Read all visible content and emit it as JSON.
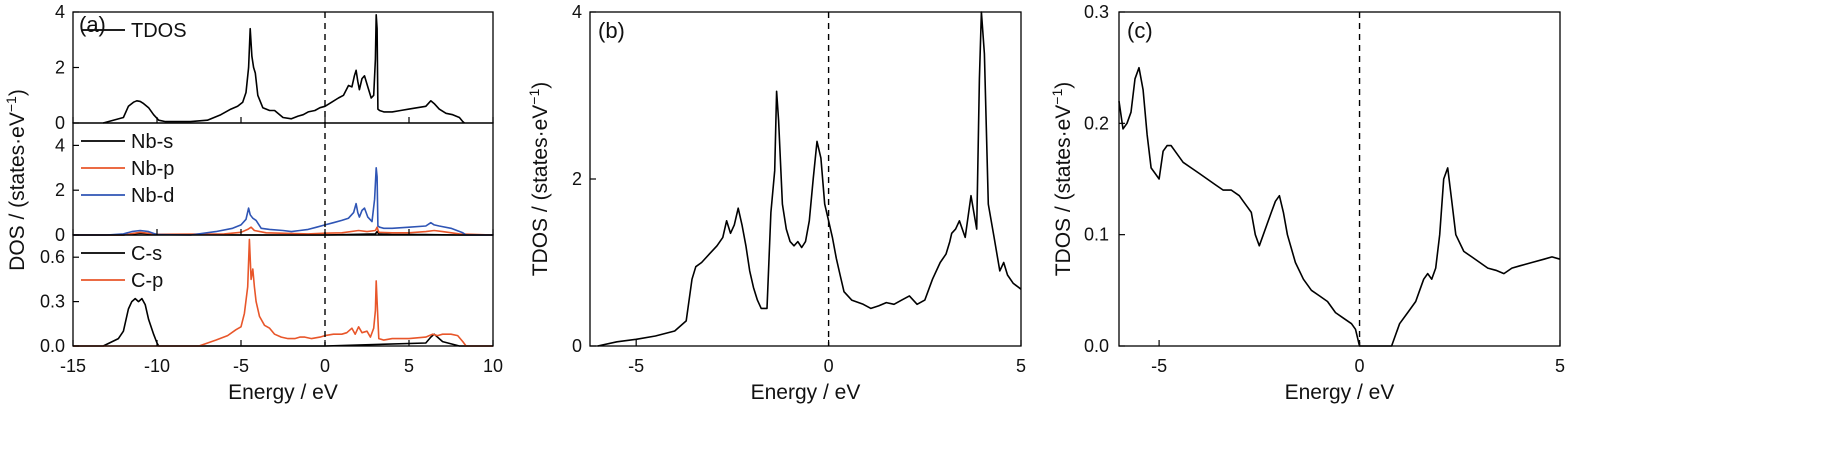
{
  "colors": {
    "black": "#000000",
    "orange": "#e8562a",
    "blue": "#2f55b5"
  },
  "chart_data": [
    {
      "type": "line",
      "panel_label": "(a)",
      "xlabel": "Energy / eV",
      "ylabel_parts": [
        "DOS / (states·eV",
        "−1",
        ")"
      ],
      "xlim": [
        -15,
        10
      ],
      "xticks": [
        -15,
        -10,
        -5,
        0,
        5,
        10
      ],
      "xtick_labels": [
        "-15",
        "-10",
        "-5",
        "0",
        "5",
        "10"
      ],
      "vertical_dashed_line_x": 0,
      "subplots": [
        {
          "ylim": [
            0,
            4
          ],
          "yticks": [
            0,
            2,
            4
          ],
          "ytick_labels": [
            "0",
            "2",
            "4"
          ],
          "legend": "top-left",
          "series": [
            {
              "name": "TDOS",
              "color": "#000000",
              "x": [
                -13.2,
                -12,
                -11.7,
                -11.4,
                -11.2,
                -11.0,
                -10.8,
                -10.5,
                -10.2,
                -9.9,
                -9.5,
                -8,
                -7,
                -6.2,
                -5.6,
                -5.2,
                -4.9,
                -4.7,
                -4.55,
                -4.45,
                -4.35,
                -4.25,
                -4.15,
                -4.0,
                -3.7,
                -3.3,
                -3,
                -2.5,
                -2,
                -1.6,
                -1.3,
                -1,
                -0.6,
                -0.3,
                0,
                0.4,
                0.8,
                1.1,
                1.4,
                1.6,
                1.75,
                1.85,
                1.95,
                2.05,
                2.2,
                2.35,
                2.55,
                2.75,
                2.9,
                3.0,
                3.05,
                3.1,
                3.15,
                3.25,
                3.5,
                4,
                4.5,
                5,
                5.5,
                6,
                6.3,
                6.5,
                6.8,
                7.2,
                7.6,
                8,
                8.2,
                8.3
              ],
              "y": [
                0,
                0.2,
                0.6,
                0.75,
                0.8,
                0.78,
                0.7,
                0.55,
                0.3,
                0.1,
                0.05,
                0.05,
                0.1,
                0.3,
                0.5,
                0.6,
                0.75,
                1.1,
                2.0,
                3.4,
                2.4,
                2.0,
                1.8,
                1.0,
                0.55,
                0.45,
                0.45,
                0.2,
                0.15,
                0.25,
                0.3,
                0.4,
                0.45,
                0.55,
                0.6,
                0.75,
                0.9,
                1.0,
                1.35,
                1.3,
                1.7,
                1.9,
                1.5,
                1.2,
                1.6,
                1.7,
                1.3,
                0.9,
                1.0,
                2.3,
                3.9,
                3.4,
                0.5,
                0.45,
                0.4,
                0.4,
                0.45,
                0.5,
                0.55,
                0.6,
                0.8,
                0.7,
                0.5,
                0.35,
                0.3,
                0.2,
                0.05,
                0
              ]
            }
          ]
        },
        {
          "ylim": [
            0,
            5
          ],
          "yticks": [
            0,
            2,
            4
          ],
          "ytick_labels": [
            "0",
            "2",
            "4"
          ],
          "legend": "top-left",
          "series": [
            {
              "name": "Nb-s",
              "color": "#000000",
              "x": [
                -15,
                -12,
                -11,
                -10,
                -5,
                0,
                2,
                3,
                3.1,
                3.2,
                4,
                6,
                8,
                10
              ],
              "y": [
                0,
                0,
                0.08,
                0.03,
                0,
                0,
                0.03,
                0.05,
                0.15,
                0.05,
                0.02,
                0.02,
                0,
                0
              ]
            },
            {
              "name": "Nb-p",
              "color": "#e8562a",
              "x": [
                -15,
                -12,
                -11,
                -10,
                -6,
                -5,
                -4.6,
                -4.4,
                -4.2,
                -3.5,
                -1,
                0,
                1,
                2,
                2.5,
                3,
                3.1,
                3.2,
                4,
                5,
                6,
                6.5,
                7,
                8,
                10
              ],
              "y": [
                0,
                0,
                0.12,
                0.03,
                0.05,
                0.12,
                0.25,
                0.35,
                0.2,
                0.1,
                0.05,
                0.08,
                0.1,
                0.2,
                0.15,
                0.2,
                0.35,
                0.12,
                0.1,
                0.1,
                0.15,
                0.2,
                0.15,
                0.05,
                0
              ]
            },
            {
              "name": "Nb-d",
              "color": "#2f55b5",
              "x": [
                -15,
                -13,
                -12,
                -11.5,
                -11,
                -10.5,
                -10,
                -8,
                -6.5,
                -5.5,
                -5,
                -4.7,
                -4.55,
                -4.45,
                -4.3,
                -4.1,
                -3.8,
                -3.3,
                -2.5,
                -2,
                -1.5,
                -1,
                -0.5,
                0,
                0.5,
                1,
                1.4,
                1.7,
                1.85,
                1.95,
                2.05,
                2.2,
                2.35,
                2.55,
                2.8,
                2.95,
                3.05,
                3.1,
                3.15,
                3.25,
                3.5,
                4,
                5,
                6,
                6.3,
                6.5,
                6.8,
                7.5,
                8.2,
                8.4,
                10
              ],
              "y": [
                0,
                0,
                0.05,
                0.15,
                0.2,
                0.15,
                0.02,
                0,
                0.15,
                0.3,
                0.45,
                0.7,
                1.2,
                0.9,
                0.75,
                0.65,
                0.3,
                0.25,
                0.2,
                0.15,
                0.2,
                0.25,
                0.35,
                0.45,
                0.55,
                0.65,
                0.75,
                1.0,
                1.4,
                1.0,
                0.8,
                1.1,
                1.2,
                0.8,
                0.6,
                1.6,
                3.0,
                2.6,
                0.4,
                0.35,
                0.3,
                0.3,
                0.35,
                0.4,
                0.55,
                0.45,
                0.4,
                0.3,
                0.1,
                0,
                0
              ]
            }
          ]
        },
        {
          "ylim": [
            0,
            0.75
          ],
          "yticks": [
            0.0,
            0.3,
            0.6
          ],
          "ytick_labels": [
            "0.0",
            "0.3",
            "0.6"
          ],
          "legend": "top-left",
          "series": [
            {
              "name": "C-s",
              "color": "#000000",
              "x": [
                -15,
                -13.2,
                -12.3,
                -12.0,
                -11.7,
                -11.5,
                -11.3,
                -11.1,
                -10.9,
                -10.7,
                -10.5,
                -10.2,
                -10.0,
                -9.9,
                0,
                6,
                6.3,
                6.5,
                7,
                8,
                10
              ],
              "y": [
                0,
                0,
                0.05,
                0.1,
                0.25,
                0.3,
                0.32,
                0.3,
                0.32,
                0.28,
                0.18,
                0.08,
                0.02,
                0,
                0,
                0.02,
                0.06,
                0.08,
                0.03,
                0,
                0
              ]
            },
            {
              "name": "C-p",
              "color": "#e8562a",
              "x": [
                -15,
                -7.5,
                -6.5,
                -5.8,
                -5.3,
                -5.0,
                -4.8,
                -4.6,
                -4.5,
                -4.4,
                -4.3,
                -4.2,
                -4.1,
                -3.9,
                -3.6,
                -3.3,
                -3.0,
                -2.6,
                -2.2,
                -1.8,
                -1.5,
                -1.2,
                -0.8,
                -0.3,
                0,
                0.5,
                1,
                1.3,
                1.6,
                1.8,
                2.0,
                2.2,
                2.5,
                2.7,
                2.9,
                3.0,
                3.05,
                3.1,
                3.2,
                3.5,
                4,
                5,
                6,
                6.4,
                6.7,
                7,
                7.5,
                7.9,
                8.2,
                8.4,
                10
              ],
              "y": [
                0,
                0,
                0.04,
                0.07,
                0.11,
                0.13,
                0.22,
                0.4,
                0.72,
                0.45,
                0.52,
                0.4,
                0.3,
                0.2,
                0.14,
                0.12,
                0.08,
                0.06,
                0.05,
                0.05,
                0.06,
                0.06,
                0.05,
                0.06,
                0.07,
                0.08,
                0.08,
                0.09,
                0.12,
                0.08,
                0.13,
                0.09,
                0.1,
                0.06,
                0.12,
                0.24,
                0.44,
                0.3,
                0.05,
                0.04,
                0.05,
                0.05,
                0.06,
                0.08,
                0.07,
                0.08,
                0.08,
                0.07,
                0.03,
                0,
                0
              ]
            }
          ]
        }
      ]
    },
    {
      "type": "line",
      "panel_label": "(b)",
      "xlabel": "Energy / eV",
      "ylabel_parts": [
        "TDOS / (states·eV",
        "−1",
        ")"
      ],
      "xlim": [
        -6.2,
        5
      ],
      "ylim": [
        0,
        4
      ],
      "xticks": [
        -5,
        0,
        5
      ],
      "xtick_labels": [
        "-5",
        "0",
        "5"
      ],
      "yticks": [
        0,
        2,
        4
      ],
      "ytick_labels": [
        "0",
        "2",
        "4"
      ],
      "vertical_dashed_line_x": 0,
      "series": [
        {
          "name": "",
          "color": "#000000",
          "x": [
            -6.0,
            -5.5,
            -5.0,
            -4.5,
            -4.0,
            -3.7,
            -3.55,
            -3.45,
            -3.3,
            -3.1,
            -2.9,
            -2.75,
            -2.65,
            -2.55,
            -2.45,
            -2.35,
            -2.25,
            -2.15,
            -2.05,
            -1.95,
            -1.85,
            -1.75,
            -1.6,
            -1.5,
            -1.4,
            -1.35,
            -1.3,
            -1.2,
            -1.1,
            -1.0,
            -0.9,
            -0.8,
            -0.7,
            -0.6,
            -0.5,
            -0.4,
            -0.3,
            -0.2,
            -0.1,
            0.0,
            0.1,
            0.2,
            0.3,
            0.4,
            0.6,
            0.9,
            1.1,
            1.3,
            1.5,
            1.7,
            1.9,
            2.1,
            2.3,
            2.5,
            2.7,
            2.9,
            3.05,
            3.15,
            3.2,
            3.3,
            3.4,
            3.55,
            3.7,
            3.85,
            3.92,
            3.97,
            4.05,
            4.15,
            4.3,
            4.45,
            4.55,
            4.65,
            4.8,
            5.0
          ],
          "y": [
            0,
            0.05,
            0.08,
            0.12,
            0.18,
            0.3,
            0.8,
            0.95,
            1.0,
            1.1,
            1.2,
            1.3,
            1.5,
            1.35,
            1.45,
            1.65,
            1.45,
            1.2,
            0.9,
            0.7,
            0.55,
            0.45,
            0.45,
            1.6,
            2.1,
            3.05,
            2.7,
            1.7,
            1.4,
            1.25,
            1.2,
            1.25,
            1.18,
            1.25,
            1.5,
            2.0,
            2.45,
            2.25,
            1.7,
            1.5,
            1.3,
            1.05,
            0.85,
            0.65,
            0.55,
            0.5,
            0.45,
            0.48,
            0.52,
            0.5,
            0.55,
            0.6,
            0.5,
            0.55,
            0.8,
            1.0,
            1.1,
            1.25,
            1.35,
            1.4,
            1.5,
            1.3,
            1.8,
            1.4,
            3.2,
            4.0,
            3.5,
            1.7,
            1.3,
            0.9,
            1.0,
            0.85,
            0.75,
            0.68
          ]
        }
      ]
    },
    {
      "type": "line",
      "panel_label": "(c)",
      "xlabel": "Energy / eV",
      "ylabel_parts": [
        "TDOS / (states·eV",
        "−1",
        ")"
      ],
      "xlim": [
        -6,
        5
      ],
      "ylim": [
        0,
        0.3
      ],
      "xticks": [
        -5,
        0,
        5
      ],
      "xtick_labels": [
        "-5",
        "0",
        "5"
      ],
      "yticks": [
        0.0,
        0.1,
        0.2,
        0.3
      ],
      "ytick_labels": [
        "0.0",
        "0.1",
        "0.2",
        "0.3"
      ],
      "vertical_dashed_line_x": 0,
      "series": [
        {
          "name": "",
          "color": "#000000",
          "x": [
            -6.0,
            -5.9,
            -5.8,
            -5.7,
            -5.6,
            -5.5,
            -5.4,
            -5.3,
            -5.2,
            -5.1,
            -5.0,
            -4.9,
            -4.8,
            -4.7,
            -4.6,
            -4.4,
            -4.2,
            -4.0,
            -3.8,
            -3.6,
            -3.4,
            -3.2,
            -3.0,
            -2.9,
            -2.8,
            -2.7,
            -2.6,
            -2.5,
            -2.4,
            -2.3,
            -2.2,
            -2.1,
            -2.0,
            -1.9,
            -1.8,
            -1.6,
            -1.4,
            -1.2,
            -1.0,
            -0.8,
            -0.6,
            -0.4,
            -0.2,
            -0.1,
            0.0,
            0.1,
            0.5,
            0.8,
            1.0,
            1.2,
            1.4,
            1.5,
            1.6,
            1.7,
            1.8,
            1.9,
            2.0,
            2.1,
            2.2,
            2.3,
            2.4,
            2.6,
            2.8,
            3.0,
            3.2,
            3.4,
            3.6,
            3.8,
            4.0,
            4.3,
            4.6,
            4.8,
            5.0
          ],
          "y": [
            0.22,
            0.195,
            0.2,
            0.21,
            0.24,
            0.25,
            0.23,
            0.19,
            0.16,
            0.155,
            0.15,
            0.175,
            0.18,
            0.18,
            0.175,
            0.165,
            0.16,
            0.155,
            0.15,
            0.145,
            0.14,
            0.14,
            0.135,
            0.13,
            0.125,
            0.12,
            0.1,
            0.09,
            0.1,
            0.11,
            0.12,
            0.13,
            0.135,
            0.12,
            0.1,
            0.075,
            0.06,
            0.05,
            0.045,
            0.04,
            0.03,
            0.025,
            0.02,
            0.015,
            0.0,
            0.0,
            0.0,
            0.0,
            0.02,
            0.03,
            0.04,
            0.05,
            0.06,
            0.065,
            0.06,
            0.07,
            0.1,
            0.15,
            0.16,
            0.13,
            0.1,
            0.085,
            0.08,
            0.075,
            0.07,
            0.068,
            0.065,
            0.07,
            0.072,
            0.075,
            0.078,
            0.08,
            0.078
          ]
        }
      ]
    }
  ]
}
